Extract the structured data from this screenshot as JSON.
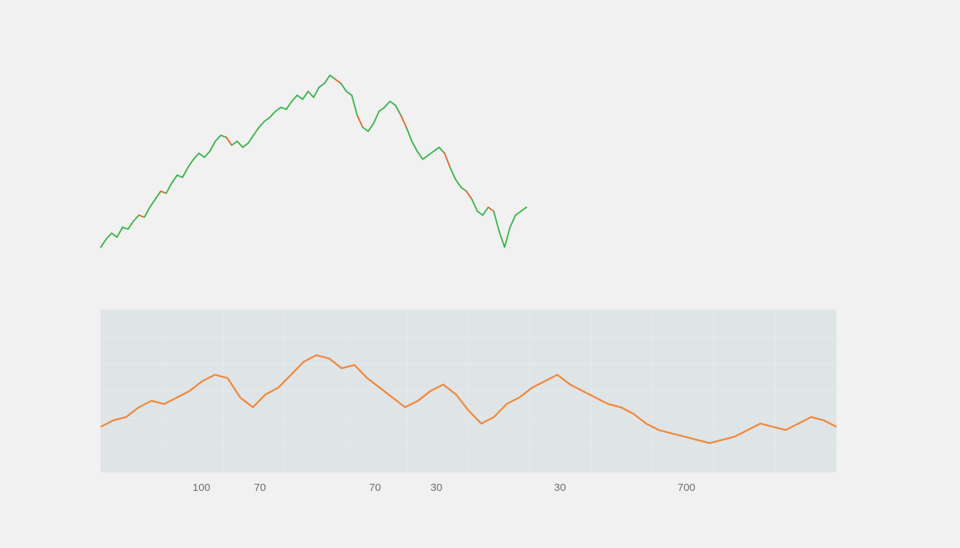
{
  "colors": {
    "background": "#f0f1f0",
    "price_up": "#3cb44b",
    "price_down": "#e8652b",
    "indicator_line": "#f08a3e",
    "panel_fill": "#dfe4e6",
    "grid": "#e6eaec",
    "tick_text": "#6c6f73"
  },
  "chart_data": [
    {
      "type": "line",
      "panel": "price",
      "series": [
        {
          "values": [
            2,
            6,
            9,
            7,
            12,
            11,
            15,
            18,
            17,
            22,
            26,
            30,
            29,
            34,
            38,
            37,
            42,
            46,
            49,
            47,
            50,
            55,
            58,
            57,
            53,
            55,
            52,
            54,
            58,
            62,
            65,
            67,
            70,
            72,
            71,
            75,
            78,
            76,
            80,
            77,
            82,
            84,
            88,
            86,
            84,
            80,
            78,
            68,
            62,
            60,
            64,
            70,
            72,
            75,
            73,
            68,
            62,
            55,
            50,
            46,
            48,
            50,
            52,
            49,
            42,
            36,
            32,
            30,
            26,
            20,
            18,
            22,
            20,
            10,
            2,
            12,
            18,
            20,
            22
          ]
        }
      ],
      "y_range": [
        0,
        90
      ],
      "grid": false,
      "legend": "none"
    },
    {
      "type": "line",
      "panel": "indicator",
      "series": [
        {
          "values": [
            28,
            32,
            34,
            40,
            44,
            42,
            46,
            50,
            56,
            60,
            58,
            46,
            40,
            48,
            52,
            60,
            68,
            72,
            70,
            64,
            66,
            58,
            52,
            46,
            40,
            44,
            50,
            54,
            48,
            38,
            30,
            34,
            42,
            46,
            52,
            56,
            60,
            54,
            50,
            46,
            42,
            40,
            36,
            30,
            26,
            24,
            22,
            20,
            18,
            20,
            22,
            26,
            30,
            28,
            26,
            30,
            34,
            32,
            28
          ]
        }
      ],
      "x_tick_labels": [
        "100",
        "70",
        "70",
        "30",
        "3‌0",
        "700"
      ],
      "x_tick_labels_display": [
        "100",
        "70",
        "70",
        "30",
        "30",
        "700"
      ],
      "y_range": [
        0,
        100
      ],
      "grid": true,
      "legend": "none"
    }
  ]
}
